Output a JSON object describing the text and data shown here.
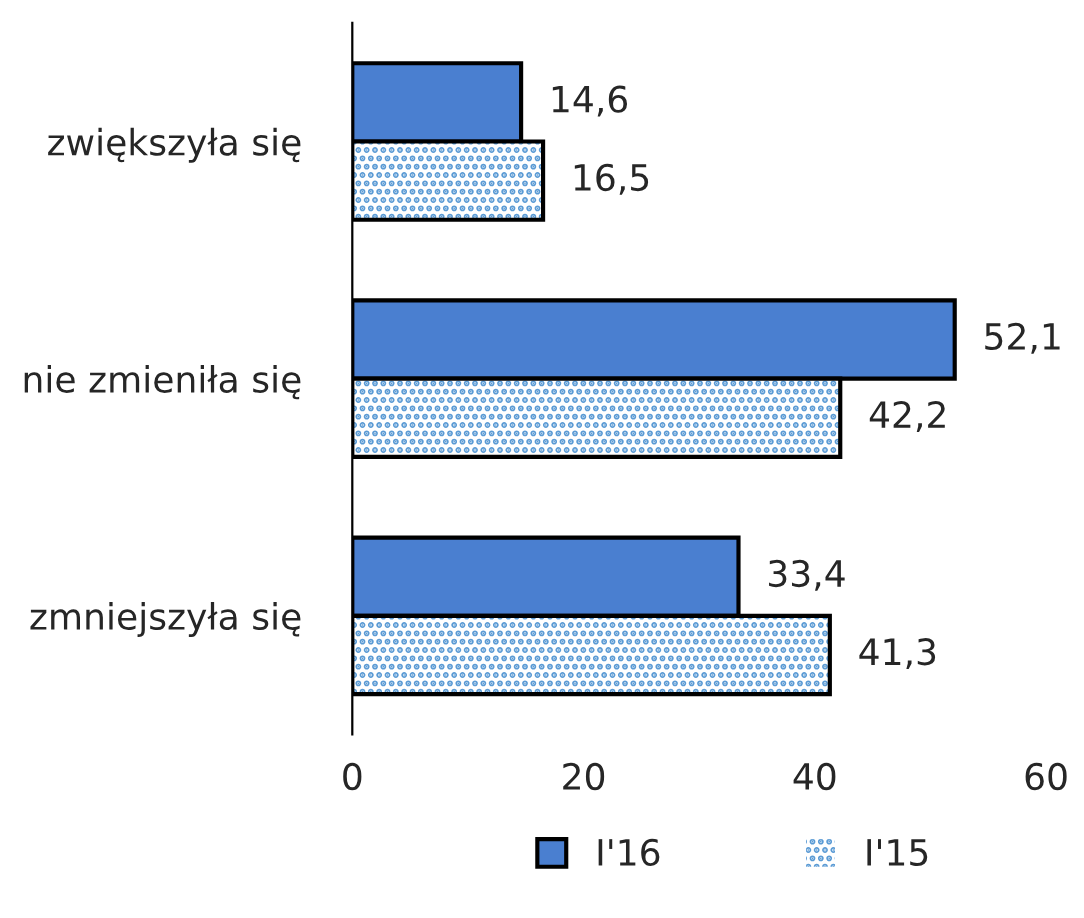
{
  "chart_data": {
    "type": "bar",
    "orientation": "horizontal",
    "categories": [
      "zwiększyła się",
      "nie zmieniła się",
      "zmniejszyła się"
    ],
    "series": [
      {
        "name": "I'16",
        "color": "#4a7fd0",
        "values": [
          14.6,
          52.1,
          33.4
        ],
        "value_labels": [
          "14,6",
          "52,1",
          "33,4"
        ]
      },
      {
        "name": "I'15",
        "color": "#5b9bd5",
        "values": [
          16.5,
          42.2,
          41.3
        ],
        "value_labels": [
          "16,5",
          "42,2",
          "41,3"
        ]
      }
    ],
    "xlim": [
      0,
      60
    ],
    "xticks": [
      0,
      20,
      40,
      60
    ],
    "legend": "bottom",
    "grid": false
  }
}
